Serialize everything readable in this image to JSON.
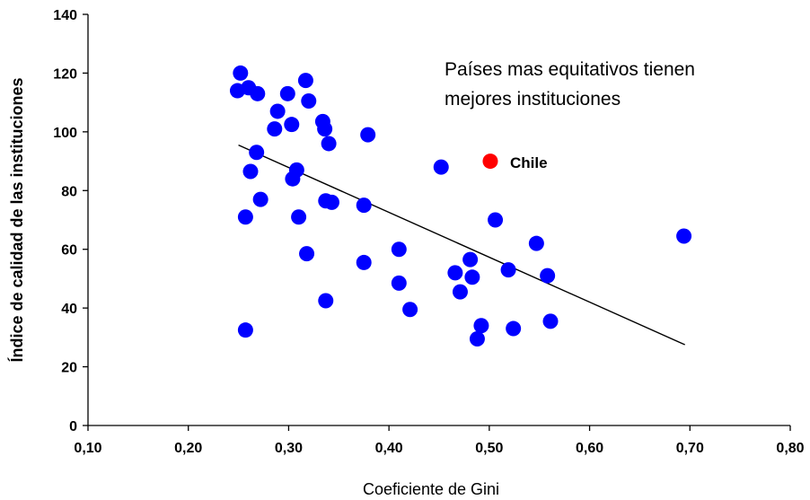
{
  "chart_data": {
    "type": "scatter",
    "xlabel": "Coeficiente  de Gini",
    "ylabel": "Índice de calidad de las  instituciones",
    "xlim": [
      0.1,
      0.8
    ],
    "ylim": [
      0,
      140
    ],
    "xticks": [
      "0,10",
      "0,20",
      "0,30",
      "0,40",
      "0,50",
      "0,60",
      "0,70",
      "0,80"
    ],
    "yticks": [
      "0",
      "20",
      "40",
      "60",
      "80",
      "100",
      "120",
      "140"
    ],
    "annotation": [
      "Países mas equitativos tienen",
      "mejores instituciones"
    ],
    "colors": {
      "points": "#0000ff",
      "highlight": "#ff0000",
      "trendline": "#000000"
    },
    "points": [
      {
        "x": 0.252,
        "y": 120
      },
      {
        "x": 0.249,
        "y": 114
      },
      {
        "x": 0.26,
        "y": 115
      },
      {
        "x": 0.269,
        "y": 113
      },
      {
        "x": 0.299,
        "y": 113
      },
      {
        "x": 0.317,
        "y": 117.5
      },
      {
        "x": 0.32,
        "y": 110.5
      },
      {
        "x": 0.289,
        "y": 107
      },
      {
        "x": 0.286,
        "y": 101
      },
      {
        "x": 0.303,
        "y": 102.5
      },
      {
        "x": 0.334,
        "y": 103.5
      },
      {
        "x": 0.336,
        "y": 101
      },
      {
        "x": 0.34,
        "y": 96
      },
      {
        "x": 0.379,
        "y": 99
      },
      {
        "x": 0.268,
        "y": 93
      },
      {
        "x": 0.262,
        "y": 86.5
      },
      {
        "x": 0.308,
        "y": 87
      },
      {
        "x": 0.304,
        "y": 84
      },
      {
        "x": 0.272,
        "y": 77
      },
      {
        "x": 0.337,
        "y": 76.5
      },
      {
        "x": 0.343,
        "y": 76
      },
      {
        "x": 0.375,
        "y": 75
      },
      {
        "x": 0.257,
        "y": 71
      },
      {
        "x": 0.31,
        "y": 71
      },
      {
        "x": 0.452,
        "y": 88
      },
      {
        "x": 0.506,
        "y": 70
      },
      {
        "x": 0.41,
        "y": 60
      },
      {
        "x": 0.318,
        "y": 58.5
      },
      {
        "x": 0.375,
        "y": 55.5
      },
      {
        "x": 0.466,
        "y": 52
      },
      {
        "x": 0.481,
        "y": 56.5
      },
      {
        "x": 0.483,
        "y": 50.5
      },
      {
        "x": 0.519,
        "y": 53
      },
      {
        "x": 0.547,
        "y": 62
      },
      {
        "x": 0.558,
        "y": 51
      },
      {
        "x": 0.41,
        "y": 48.5
      },
      {
        "x": 0.471,
        "y": 45.5
      },
      {
        "x": 0.337,
        "y": 42.5
      },
      {
        "x": 0.421,
        "y": 39.5
      },
      {
        "x": 0.492,
        "y": 34
      },
      {
        "x": 0.524,
        "y": 33
      },
      {
        "x": 0.561,
        "y": 35.5
      },
      {
        "x": 0.488,
        "y": 29.5
      },
      {
        "x": 0.257,
        "y": 32.5
      },
      {
        "x": 0.694,
        "y": 64.5
      }
    ],
    "highlight_point": {
      "label": "Chile",
      "x": 0.501,
      "y": 90
    },
    "trendline": {
      "x": [
        0.25,
        0.695
      ],
      "y": [
        95.5,
        27.5
      ]
    }
  }
}
